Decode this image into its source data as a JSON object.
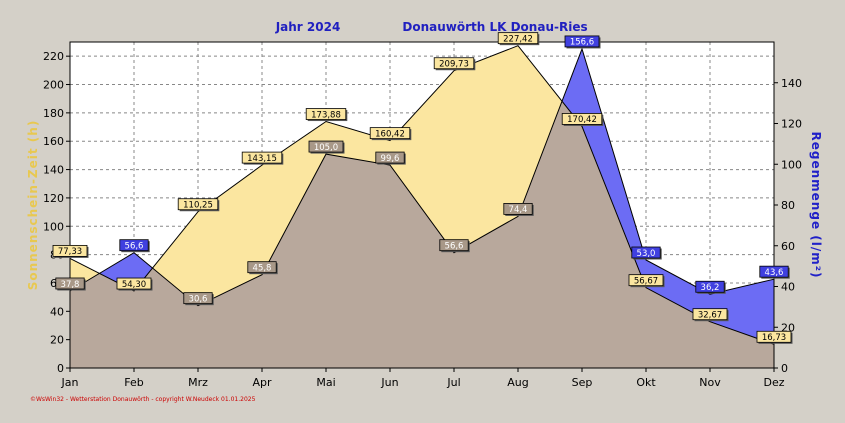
{
  "header": {
    "year_label": "Jahr  2024",
    "station_label": "Donauwörth LK Donau-Ries"
  },
  "footer": {
    "copyright": "©WsWin32 - Wetterstation Donauwörth - copyright W.Neudeck  01.01.2025"
  },
  "colors": {
    "background": "#d4d0c8",
    "plot_bg": "#ffffff",
    "sunshine_fill": "#fbe6a0",
    "sunshine_axis": "#e8c850",
    "rain_fill": "#6c6cf4",
    "rain_axis": "#2020c8",
    "overlap_fill": "#b8a89c",
    "title": "#2020c0",
    "footer": "#cc0000"
  },
  "chart_data": {
    "type": "area",
    "categories": [
      "Jan",
      "Feb",
      "Mrz",
      "Apr",
      "Mai",
      "Jun",
      "Jul",
      "Aug",
      "Sep",
      "Okt",
      "Nov",
      "Dez"
    ],
    "ylabel_left": "Sonnenschein-Zeit  (h)",
    "ylabel_right": "Regenmenge  (l/m²)",
    "ylim_left": [
      0,
      230
    ],
    "yticks_left": [
      0,
      20,
      40,
      60,
      80,
      100,
      120,
      140,
      160,
      180,
      200,
      220
    ],
    "ylim_right": [
      0,
      160
    ],
    "yticks_right": [
      0,
      20,
      40,
      60,
      80,
      100,
      120,
      140
    ],
    "grid": true,
    "series": [
      {
        "name": "Sonnenschein-Zeit",
        "axis": "left",
        "values": [
          77.33,
          54.3,
          110.25,
          143.15,
          173.88,
          160.42,
          209.73,
          227.42,
          170.42,
          56.67,
          32.67,
          16.73
        ],
        "labels": [
          "77,33",
          "54,30",
          "110,25",
          "143,15",
          "173,88",
          "160,42",
          "209,73",
          "227,42",
          "170,42",
          "56,67",
          "32,67",
          "16,73"
        ]
      },
      {
        "name": "Regenmenge",
        "axis": "right",
        "values": [
          37.8,
          56.6,
          30.6,
          45.8,
          105.0,
          99.6,
          56.6,
          74.4,
          156.6,
          53.0,
          36.2,
          43.6
        ],
        "labels": [
          "37,8",
          "56,6",
          "30,6",
          "45,8",
          "105,0",
          "99,6",
          "56,6",
          "74,4",
          "156,6",
          "53,0",
          "36,2",
          "43,6"
        ]
      }
    ]
  }
}
